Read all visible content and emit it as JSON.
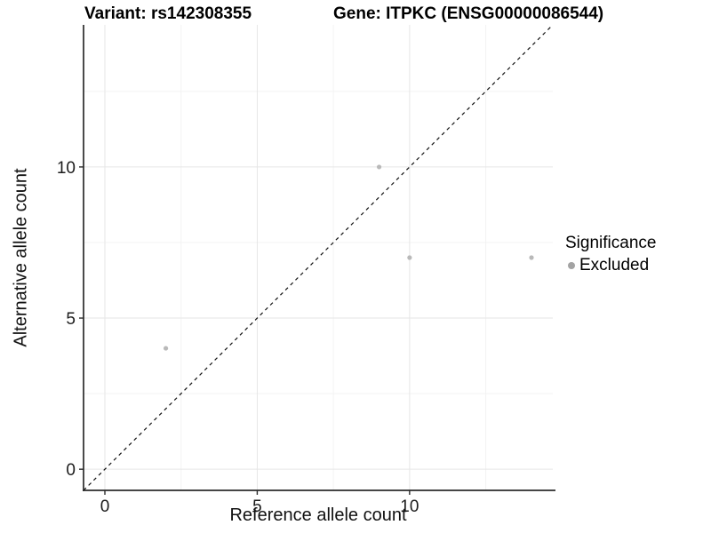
{
  "header": {
    "variant_title": "Variant: rs142308355",
    "gene_title": "Gene: ITPKC (ENSG00000086544)"
  },
  "legend": {
    "title": "Significance",
    "entries": [
      {
        "label": "Excluded",
        "color": "#a3a3a3"
      }
    ]
  },
  "chart_data": {
    "type": "scatter",
    "xlabel": "Reference allele count",
    "ylabel": "Alternative allele count",
    "xlim": [
      -0.7,
      14.7
    ],
    "ylim": [
      -0.7,
      14.7
    ],
    "x_major_ticks": [
      0,
      5,
      10
    ],
    "y_major_ticks": [
      0,
      5,
      10
    ],
    "x_minor_gridlines": [
      2.5,
      7.5,
      12.5
    ],
    "y_minor_gridlines": [
      2.5,
      7.5,
      12.5
    ],
    "series": [
      {
        "name": "Excluded",
        "color": "#b9b9b9",
        "points": [
          [
            2,
            4
          ],
          [
            9,
            10
          ],
          [
            10,
            7
          ],
          [
            14,
            7
          ]
        ]
      }
    ],
    "reference_line": {
      "type": "identity",
      "style": "dashed",
      "color": "#111111"
    },
    "grid": {
      "major_color": "#e6e6e6",
      "minor_color": "#f3f3f3"
    },
    "axis_color": "#2b2b2b",
    "tick_label_color": "#1c1c1c",
    "legend_position": "right"
  }
}
